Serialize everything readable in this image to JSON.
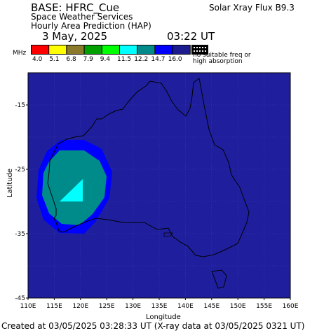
{
  "header": {
    "base": "BASE: HFRC_Cue",
    "flux": "Solar Xray Flux B9.3",
    "line2": "Space Weather Services",
    "line3": "Hourly Area Prediction (HAP)",
    "date": "3 May, 2025",
    "time": "03:22 UT"
  },
  "legend": {
    "unit": "MHz",
    "ticks": [
      "4.0",
      "5.1",
      "6.8",
      "7.9",
      "9.4",
      "11.5",
      "12.2",
      "14.7",
      "16.0"
    ],
    "colors": [
      "#ff0000",
      "#ffff00",
      "#8b7a2b",
      "#00a000",
      "#00ff00",
      "#00ffff",
      "#008b8b",
      "#0000ff",
      "#1c1c8f"
    ],
    "no_freq_line1": "no suitable freq or",
    "no_freq_line2": "high absorption"
  },
  "map": {
    "xaxis_title": "Longitude",
    "yaxis_title": "Latitude",
    "x_ticks": [
      "110E",
      "115E",
      "120E",
      "125E",
      "130E",
      "135E",
      "140E",
      "145E",
      "150E",
      "155E",
      "160E"
    ],
    "y_ticks": [
      "-15",
      "-25",
      "-35",
      "-45"
    ],
    "lon_range": [
      110,
      160
    ],
    "lat_range": [
      -45,
      -10
    ],
    "background_color": "#1f1f9e",
    "regions_colors": {
      "outer": "#0000ff",
      "middle": "#008b8b",
      "inner": "#00ffff"
    }
  },
  "footer": {
    "text": "Created at 03/05/2025 03:28:33 UT (X-ray data at 03/05/2025 0321 UT)"
  }
}
